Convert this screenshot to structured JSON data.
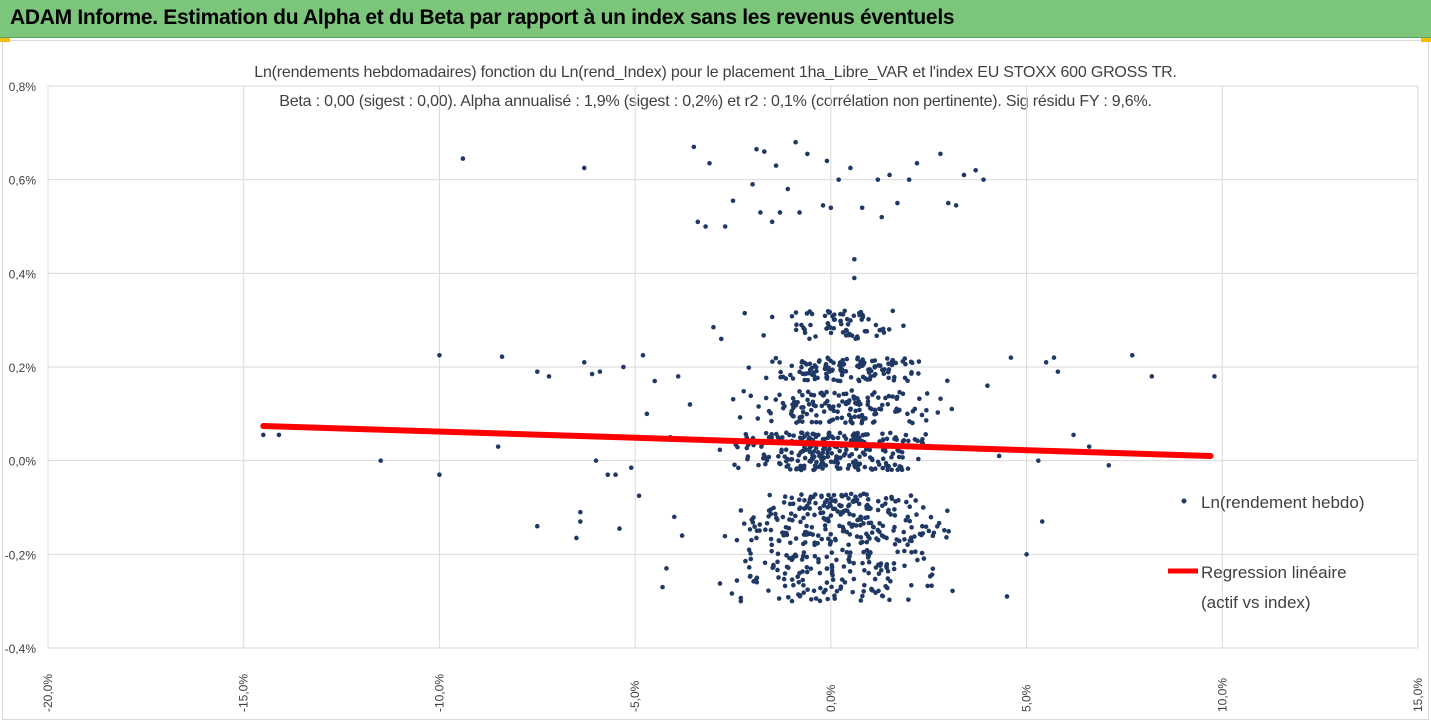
{
  "banner": {
    "title": "ADAM Informe. Estimation du Alpha et du Beta par rapport à un index sans les revenus éventuels",
    "color": "#7cc67c"
  },
  "chart_data": {
    "type": "scatter",
    "title_line1": "Ln(rendements hebdomadaires) fonction du Ln(rend_Index) pour le placement 1ha_Libre_VAR et l'index EU STOXX 600 GROSS TR.",
    "title_line2": "Beta : 0,00 (sigest : 0,00). Alpha annualisé : 1,9% (sigest : 0,2%) et r2 : 0,1% (corrélation non pertinente). Sig résidu FY : 9,6%.",
    "xlim": [
      -20,
      15
    ],
    "ylim": [
      -0.4,
      0.8
    ],
    "x_ticks": [
      "-20,0%",
      "-15,0%",
      "-10,0%",
      "-5,0%",
      "0,0%",
      "5,0%",
      "10,0%",
      "15,0%"
    ],
    "y_ticks": [
      "0,8%",
      "0,6%",
      "0,4%",
      "0,2%",
      "0,0%",
      "-0,2%",
      "-0,4%"
    ],
    "grid": true,
    "legend_position": "right",
    "series": [
      {
        "name": "Ln(rendement hebdo)",
        "kind": "scatter",
        "color": "#1f3864",
        "points": [
          [
            -14.5,
            0.055
          ],
          [
            -14.1,
            0.055
          ],
          [
            -11.5,
            0.0
          ],
          [
            -10.0,
            0.225
          ],
          [
            -10.0,
            -0.03
          ],
          [
            -9.4,
            0.645
          ],
          [
            -8.4,
            0.222
          ],
          [
            -8.5,
            0.03
          ],
          [
            -7.5,
            0.19
          ],
          [
            -7.5,
            -0.14
          ],
          [
            -7.2,
            0.18
          ],
          [
            -6.7,
            0.055
          ],
          [
            -6.5,
            -0.165
          ],
          [
            -6.4,
            -0.11
          ],
          [
            -6.4,
            -0.13
          ],
          [
            -6.3,
            0.21
          ],
          [
            -6.3,
            0.625
          ],
          [
            -6.1,
            0.185
          ],
          [
            -6.0,
            0.0
          ],
          [
            -5.9,
            0.19
          ],
          [
            -5.7,
            -0.03
          ],
          [
            -5.5,
            -0.03
          ],
          [
            -5.4,
            -0.145
          ],
          [
            -5.3,
            0.2
          ],
          [
            -5.2,
            0.05
          ],
          [
            -5.1,
            -0.015
          ],
          [
            -4.9,
            -0.075
          ],
          [
            -4.8,
            0.225
          ],
          [
            -4.7,
            0.1
          ],
          [
            -4.5,
            0.17
          ],
          [
            -4.3,
            -0.27
          ],
          [
            -4.2,
            -0.23
          ],
          [
            -4.1,
            0.05
          ],
          [
            -4.0,
            -0.12
          ],
          [
            -3.9,
            0.18
          ],
          [
            -3.8,
            -0.16
          ],
          [
            -3.6,
            0.12
          ],
          [
            -3.5,
            0.67
          ],
          [
            -3.4,
            0.51
          ],
          [
            -3.2,
            0.5
          ],
          [
            -3.1,
            0.635
          ],
          [
            -3.0,
            0.285
          ],
          [
            -2.8,
            0.26
          ],
          [
            -2.7,
            0.5
          ],
          [
            -2.5,
            0.555
          ],
          [
            -2.3,
            -0.3
          ],
          [
            -2.2,
            0.315
          ],
          [
            -2.0,
            0.59
          ],
          [
            -1.9,
            0.665
          ],
          [
            -1.8,
            0.53
          ],
          [
            -1.7,
            0.66
          ],
          [
            -1.5,
            0.51
          ],
          [
            -1.4,
            0.63
          ],
          [
            -1.3,
            0.53
          ],
          [
            -1.1,
            0.58
          ],
          [
            -0.9,
            0.68
          ],
          [
            -0.8,
            0.53
          ],
          [
            -0.6,
            0.655
          ],
          [
            -0.2,
            0.545
          ],
          [
            -0.1,
            0.64
          ],
          [
            0.0,
            0.54
          ],
          [
            0.2,
            0.6
          ],
          [
            0.5,
            0.625
          ],
          [
            0.6,
            0.43
          ],
          [
            0.6,
            0.39
          ],
          [
            0.8,
            0.54
          ],
          [
            1.2,
            0.6
          ],
          [
            1.3,
            0.52
          ],
          [
            1.5,
            0.61
          ],
          [
            1.7,
            0.55
          ],
          [
            2.0,
            0.6
          ],
          [
            2.2,
            0.635
          ],
          [
            2.8,
            0.655
          ],
          [
            3.0,
            0.55
          ],
          [
            3.2,
            0.545
          ],
          [
            3.4,
            0.61
          ],
          [
            3.7,
            0.62
          ],
          [
            3.9,
            0.6
          ],
          [
            4.0,
            0.16
          ],
          [
            4.3,
            0.01
          ],
          [
            4.5,
            -0.29
          ],
          [
            4.6,
            0.22
          ],
          [
            5.0,
            -0.2
          ],
          [
            5.3,
            0.0
          ],
          [
            5.4,
            -0.13
          ],
          [
            5.5,
            0.21
          ],
          [
            5.7,
            0.22
          ],
          [
            5.8,
            0.19
          ],
          [
            6.2,
            0.055
          ],
          [
            6.6,
            0.03
          ],
          [
            7.1,
            -0.01
          ],
          [
            7.7,
            0.225
          ],
          [
            8.2,
            0.18
          ],
          [
            9.8,
            0.18
          ]
        ],
        "dense_clusters": [
          {
            "x": [
              -2.3,
              2.7
            ],
            "y": [
              0.26,
              0.32
            ],
            "n": 70
          },
          {
            "x": [
              -2.4,
              3.2
            ],
            "y": [
              0.17,
              0.22
            ],
            "n": 130
          },
          {
            "x": [
              -3.0,
              3.5
            ],
            "y": [
              0.08,
              0.15
            ],
            "n": 150
          },
          {
            "x": [
              -3.5,
              3.5
            ],
            "y": [
              -0.02,
              0.06
            ],
            "n": 260
          },
          {
            "x": [
              -2.6,
              2.8
            ],
            "y": [
              -0.1,
              -0.07
            ],
            "n": 70
          },
          {
            "x": [
              -3.8,
              4.2
            ],
            "y": [
              -0.18,
              -0.1
            ],
            "n": 180
          },
          {
            "x": [
              -3.5,
              3.8
            ],
            "y": [
              -0.3,
              -0.19
            ],
            "n": 160
          }
        ]
      },
      {
        "name": "Regression linéaire (actif vs index)",
        "label_line1": "Regression linéaire",
        "label_line2": "(actif vs index)",
        "kind": "line",
        "color": "#ff0000",
        "x": [
          -14.5,
          9.7
        ],
        "y": [
          0.074,
          0.01
        ]
      }
    ]
  }
}
